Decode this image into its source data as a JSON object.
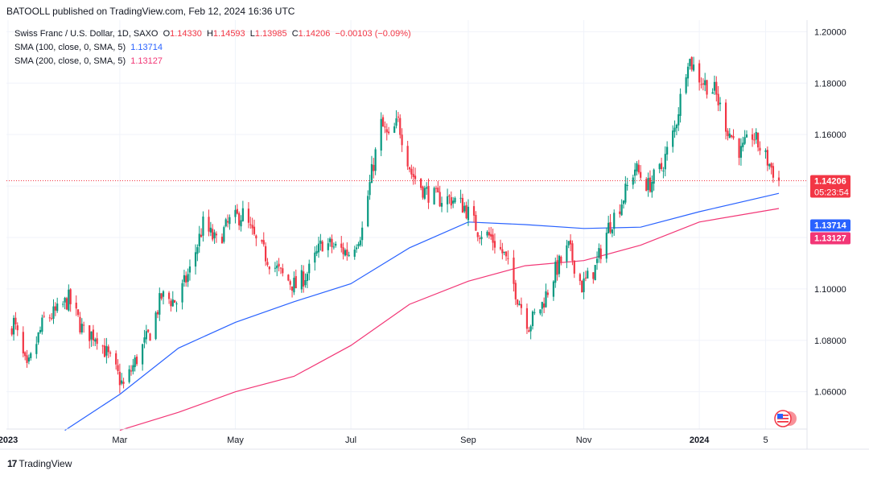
{
  "header": {
    "published_by": "BATOOLL published on TradingView.com, Feb 12, 2024 16:36 UTC"
  },
  "legend": {
    "symbol": "Swiss Franc / U.S. Dollar, 1D, SAXO",
    "open_label": "O",
    "open": "1.14330",
    "high_label": "H",
    "high": "1.14593",
    "low_label": "L",
    "low": "1.13985",
    "close_label": "C",
    "close": "1.14206",
    "change": "−0.00103 (−0.09%)",
    "sma100_label": "SMA (100, close, 0, SMA, 5)",
    "sma100_value": "1.13714",
    "sma200_label": "SMA (200, close, 0, SMA, 5)",
    "sma200_value": "1.13127"
  },
  "price_tags": {
    "last_price": "1.14206",
    "countdown": "05:23:54",
    "sma100": "1.13714",
    "sma200": "1.13127"
  },
  "footer": {
    "brand": "TradingView"
  },
  "colors": {
    "up": "#089981",
    "down": "#f23645",
    "sma100": "#2962ff",
    "sma200": "#f23676",
    "grid": "#f0f3fa",
    "axis_text": "#131722"
  },
  "chart_data": {
    "type": "candlestick",
    "title": "Swiss Franc / U.S. Dollar, 1D, SAXO",
    "y_ticks": [
      "1.06000",
      "1.08000",
      "1.10000",
      "1.12000",
      "1.14000",
      "1.16000",
      "1.18000",
      "1.20000"
    ],
    "ylim": [
      1.0455,
      1.2045
    ],
    "x_ticks": [
      "2023",
      "Mar",
      "May",
      "Jul",
      "Sep",
      "Nov",
      "2024",
      "5"
    ],
    "grid": true,
    "price_path": [
      [
        "2023-01-01",
        1.084
      ],
      [
        "2023-01-04",
        1.087
      ],
      [
        "2023-01-11",
        1.068
      ],
      [
        "2023-01-20",
        1.088
      ],
      [
        "2023-01-27",
        1.091
      ],
      [
        "2023-02-02",
        1.096
      ],
      [
        "2023-02-10",
        1.083
      ],
      [
        "2023-02-17",
        1.082
      ],
      [
        "2023-02-24",
        1.072
      ],
      [
        "2023-03-03",
        1.062
      ],
      [
        "2023-03-10",
        1.073
      ],
      [
        "2023-03-17",
        1.083
      ],
      [
        "2023-03-23",
        1.097
      ],
      [
        "2023-03-31",
        1.095
      ],
      [
        "2023-04-07",
        1.107
      ],
      [
        "2023-04-14",
        1.125
      ],
      [
        "2023-04-21",
        1.118
      ],
      [
        "2023-04-28",
        1.126
      ],
      [
        "2023-05-05",
        1.129
      ],
      [
        "2023-05-12",
        1.118
      ],
      [
        "2023-05-19",
        1.111
      ],
      [
        "2023-05-26",
        1.105
      ],
      [
        "2023-06-02",
        1.101
      ],
      [
        "2023-06-09",
        1.107
      ],
      [
        "2023-06-16",
        1.118
      ],
      [
        "2023-06-23",
        1.116
      ],
      [
        "2023-06-30",
        1.114
      ],
      [
        "2023-07-07",
        1.123
      ],
      [
        "2023-07-12",
        1.145
      ],
      [
        "2023-07-17",
        1.164
      ],
      [
        "2023-07-21",
        1.158
      ],
      [
        "2023-07-26",
        1.165
      ],
      [
        "2023-08-02",
        1.145
      ],
      [
        "2023-08-09",
        1.138
      ],
      [
        "2023-08-16",
        1.135
      ],
      [
        "2023-08-23",
        1.135
      ],
      [
        "2023-08-30",
        1.132
      ],
      [
        "2023-09-06",
        1.123
      ],
      [
        "2023-09-13",
        1.12
      ],
      [
        "2023-09-20",
        1.113
      ],
      [
        "2023-09-27",
        1.097
      ],
      [
        "2023-10-03",
        1.086
      ],
      [
        "2023-10-10",
        1.094
      ],
      [
        "2023-10-17",
        1.107
      ],
      [
        "2023-10-24",
        1.116
      ],
      [
        "2023-10-31",
        1.101
      ],
      [
        "2023-11-07",
        1.108
      ],
      [
        "2023-11-14",
        1.124
      ],
      [
        "2023-11-21",
        1.134
      ],
      [
        "2023-11-28",
        1.147
      ],
      [
        "2023-12-05",
        1.14
      ],
      [
        "2023-12-12",
        1.147
      ],
      [
        "2023-12-19",
        1.162
      ],
      [
        "2023-12-26",
        1.19
      ],
      [
        "2024-01-02",
        1.181
      ],
      [
        "2024-01-09",
        1.177
      ],
      [
        "2024-01-16",
        1.162
      ],
      [
        "2024-01-23",
        1.153
      ],
      [
        "2024-01-29",
        1.16
      ],
      [
        "2024-02-05",
        1.151
      ],
      [
        "2024-02-12",
        1.14206
      ]
    ],
    "series": [
      {
        "name": "SMA (100, close, 0, SMA, 5)",
        "color": "#2962ff",
        "points": [
          [
            "2023-01-31",
            1.045
          ],
          [
            "2023-03-01",
            1.059
          ],
          [
            "2023-04-01",
            1.077
          ],
          [
            "2023-05-01",
            1.087
          ],
          [
            "2023-06-01",
            1.095
          ],
          [
            "2023-07-01",
            1.102
          ],
          [
            "2023-08-01",
            1.116
          ],
          [
            "2023-09-01",
            1.126
          ],
          [
            "2023-10-01",
            1.125
          ],
          [
            "2023-11-01",
            1.1235
          ],
          [
            "2023-12-01",
            1.124
          ],
          [
            "2024-01-01",
            1.13
          ],
          [
            "2024-02-12",
            1.13714
          ]
        ]
      },
      {
        "name": "SMA (200, close, 0, SMA, 5)",
        "color": "#f23676",
        "points": [
          [
            "2023-03-01",
            1.045
          ],
          [
            "2023-04-01",
            1.052
          ],
          [
            "2023-05-01",
            1.06
          ],
          [
            "2023-06-01",
            1.066
          ],
          [
            "2023-07-01",
            1.078
          ],
          [
            "2023-08-01",
            1.094
          ],
          [
            "2023-09-01",
            1.103
          ],
          [
            "2023-10-01",
            1.109
          ],
          [
            "2023-11-01",
            1.111
          ],
          [
            "2023-12-01",
            1.117
          ],
          [
            "2024-01-01",
            1.126
          ],
          [
            "2024-02-12",
            1.13127
          ]
        ]
      }
    ],
    "last": {
      "open": 1.1433,
      "high": 1.14593,
      "low": 1.13985,
      "close": 1.14206,
      "time_to_close": "05:23:54"
    }
  }
}
